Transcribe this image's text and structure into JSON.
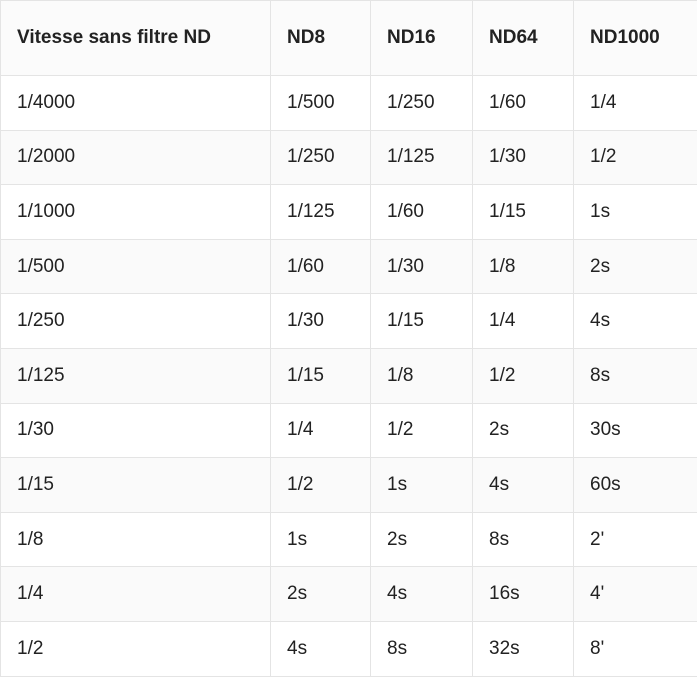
{
  "table": {
    "header": [
      "Vitesse sans filtre ND",
      "ND8",
      "ND16",
      "ND64",
      "ND1000"
    ],
    "rows": [
      [
        "1/4000",
        "1/500",
        "1/250",
        "1/60",
        "1/4"
      ],
      [
        "1/2000",
        "1/250",
        "1/125",
        "1/30",
        "1/2"
      ],
      [
        "1/1000",
        "1/125",
        "1/60",
        "1/15",
        "1s"
      ],
      [
        "1/500",
        "1/60",
        "1/30",
        "1/8",
        "2s"
      ],
      [
        "1/250",
        "1/30",
        "1/15",
        "1/4",
        "4s"
      ],
      [
        "1/125",
        "1/15",
        "1/8",
        "1/2",
        "8s"
      ],
      [
        "1/30",
        "1/4",
        "1/2",
        "2s",
        "30s"
      ],
      [
        "1/15",
        "1/2",
        "1s",
        "4s",
        "60s"
      ],
      [
        "1/8",
        "1s",
        "2s",
        "8s",
        "2'"
      ],
      [
        "1/4",
        "2s",
        "4s",
        "16s",
        "4'"
      ],
      [
        "1/2",
        "4s",
        "8s",
        "32s",
        "8'"
      ]
    ]
  }
}
